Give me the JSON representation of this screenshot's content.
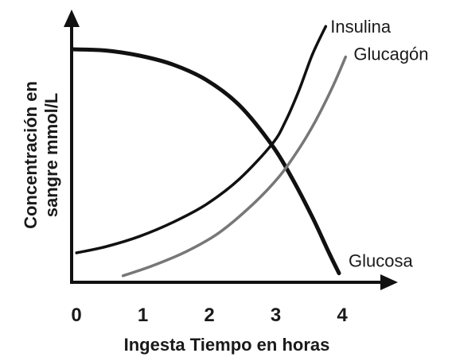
{
  "chart_data": {
    "type": "line",
    "title": "",
    "xlabel": "Ingesta Tiempo en horas",
    "ylabel_lines": [
      "Concentración en",
      "sangre mmol/L"
    ],
    "xlim": [
      0,
      4.8
    ],
    "ylim": [
      0,
      10
    ],
    "x_ticks": [
      "0",
      "1",
      "2",
      "3",
      "4"
    ],
    "y_ticks": [],
    "grid": false,
    "legend": "none (curves labeled directly)",
    "series": [
      {
        "name": "Glucosa",
        "color": "#111111",
        "x": [
          0,
          0.5,
          1,
          1.5,
          2,
          2.5,
          3,
          3.3,
          3.6,
          3.85,
          4.0
        ],
        "y": [
          9.0,
          8.95,
          8.75,
          8.4,
          7.8,
          6.8,
          5.2,
          3.9,
          2.4,
          1.0,
          0.2
        ]
      },
      {
        "name": "Insulina",
        "color": "#111111",
        "x": [
          0.05,
          0.5,
          1,
          1.5,
          2,
          2.5,
          3,
          3.2,
          3.4,
          3.6,
          3.8
        ],
        "y": [
          1.0,
          1.25,
          1.65,
          2.2,
          2.9,
          3.9,
          5.3,
          6.2,
          7.4,
          8.8,
          9.9
        ]
      },
      {
        "name": "Glucagón",
        "color": "#777777",
        "x": [
          0.75,
          1.2,
          1.7,
          2.2,
          2.7,
          3.1,
          3.4,
          3.65,
          3.9,
          4.1
        ],
        "y": [
          0.1,
          0.5,
          1.05,
          1.8,
          2.9,
          4.0,
          5.1,
          6.2,
          7.5,
          8.7
        ]
      }
    ]
  }
}
